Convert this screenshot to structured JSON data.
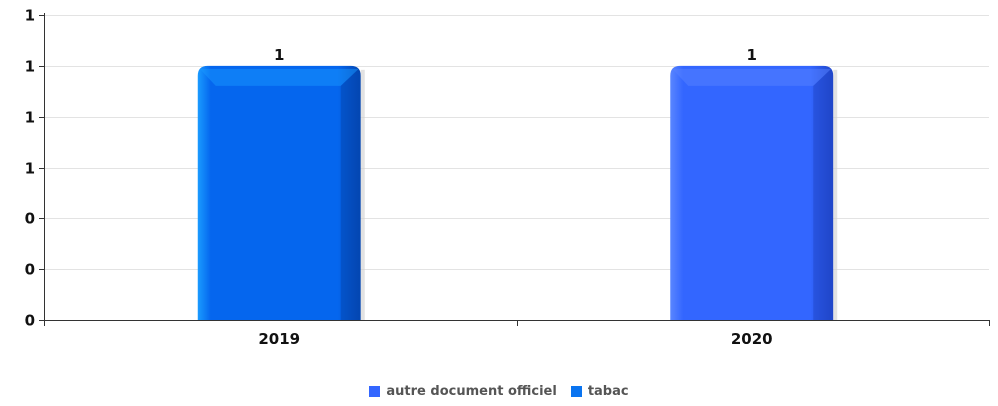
{
  "chart_data": {
    "type": "bar",
    "categories": [
      "2019",
      "2020"
    ],
    "series": [
      {
        "name": "autre document officiel",
        "color": "#3366ff",
        "values": [
          null,
          1
        ]
      },
      {
        "name": "tabac",
        "color": "#0a74f0",
        "values": [
          1,
          null
        ]
      }
    ],
    "bars": [
      {
        "category": "2019",
        "series": "tabac",
        "value": 1,
        "label": "1"
      },
      {
        "category": "2020",
        "series": "autre document officiel",
        "value": 1,
        "label": "1"
      }
    ],
    "ylim": [
      0,
      1.2
    ],
    "ytick_values": [
      0,
      0.2,
      0.4,
      0.6,
      0.8,
      1.0,
      1.2
    ],
    "ytick_labels": [
      "0",
      "0",
      "0",
      "1",
      "1",
      "1",
      "1"
    ],
    "grid": true,
    "legend_position": "bottom",
    "title": "",
    "xlabel": "",
    "ylabel": ""
  }
}
